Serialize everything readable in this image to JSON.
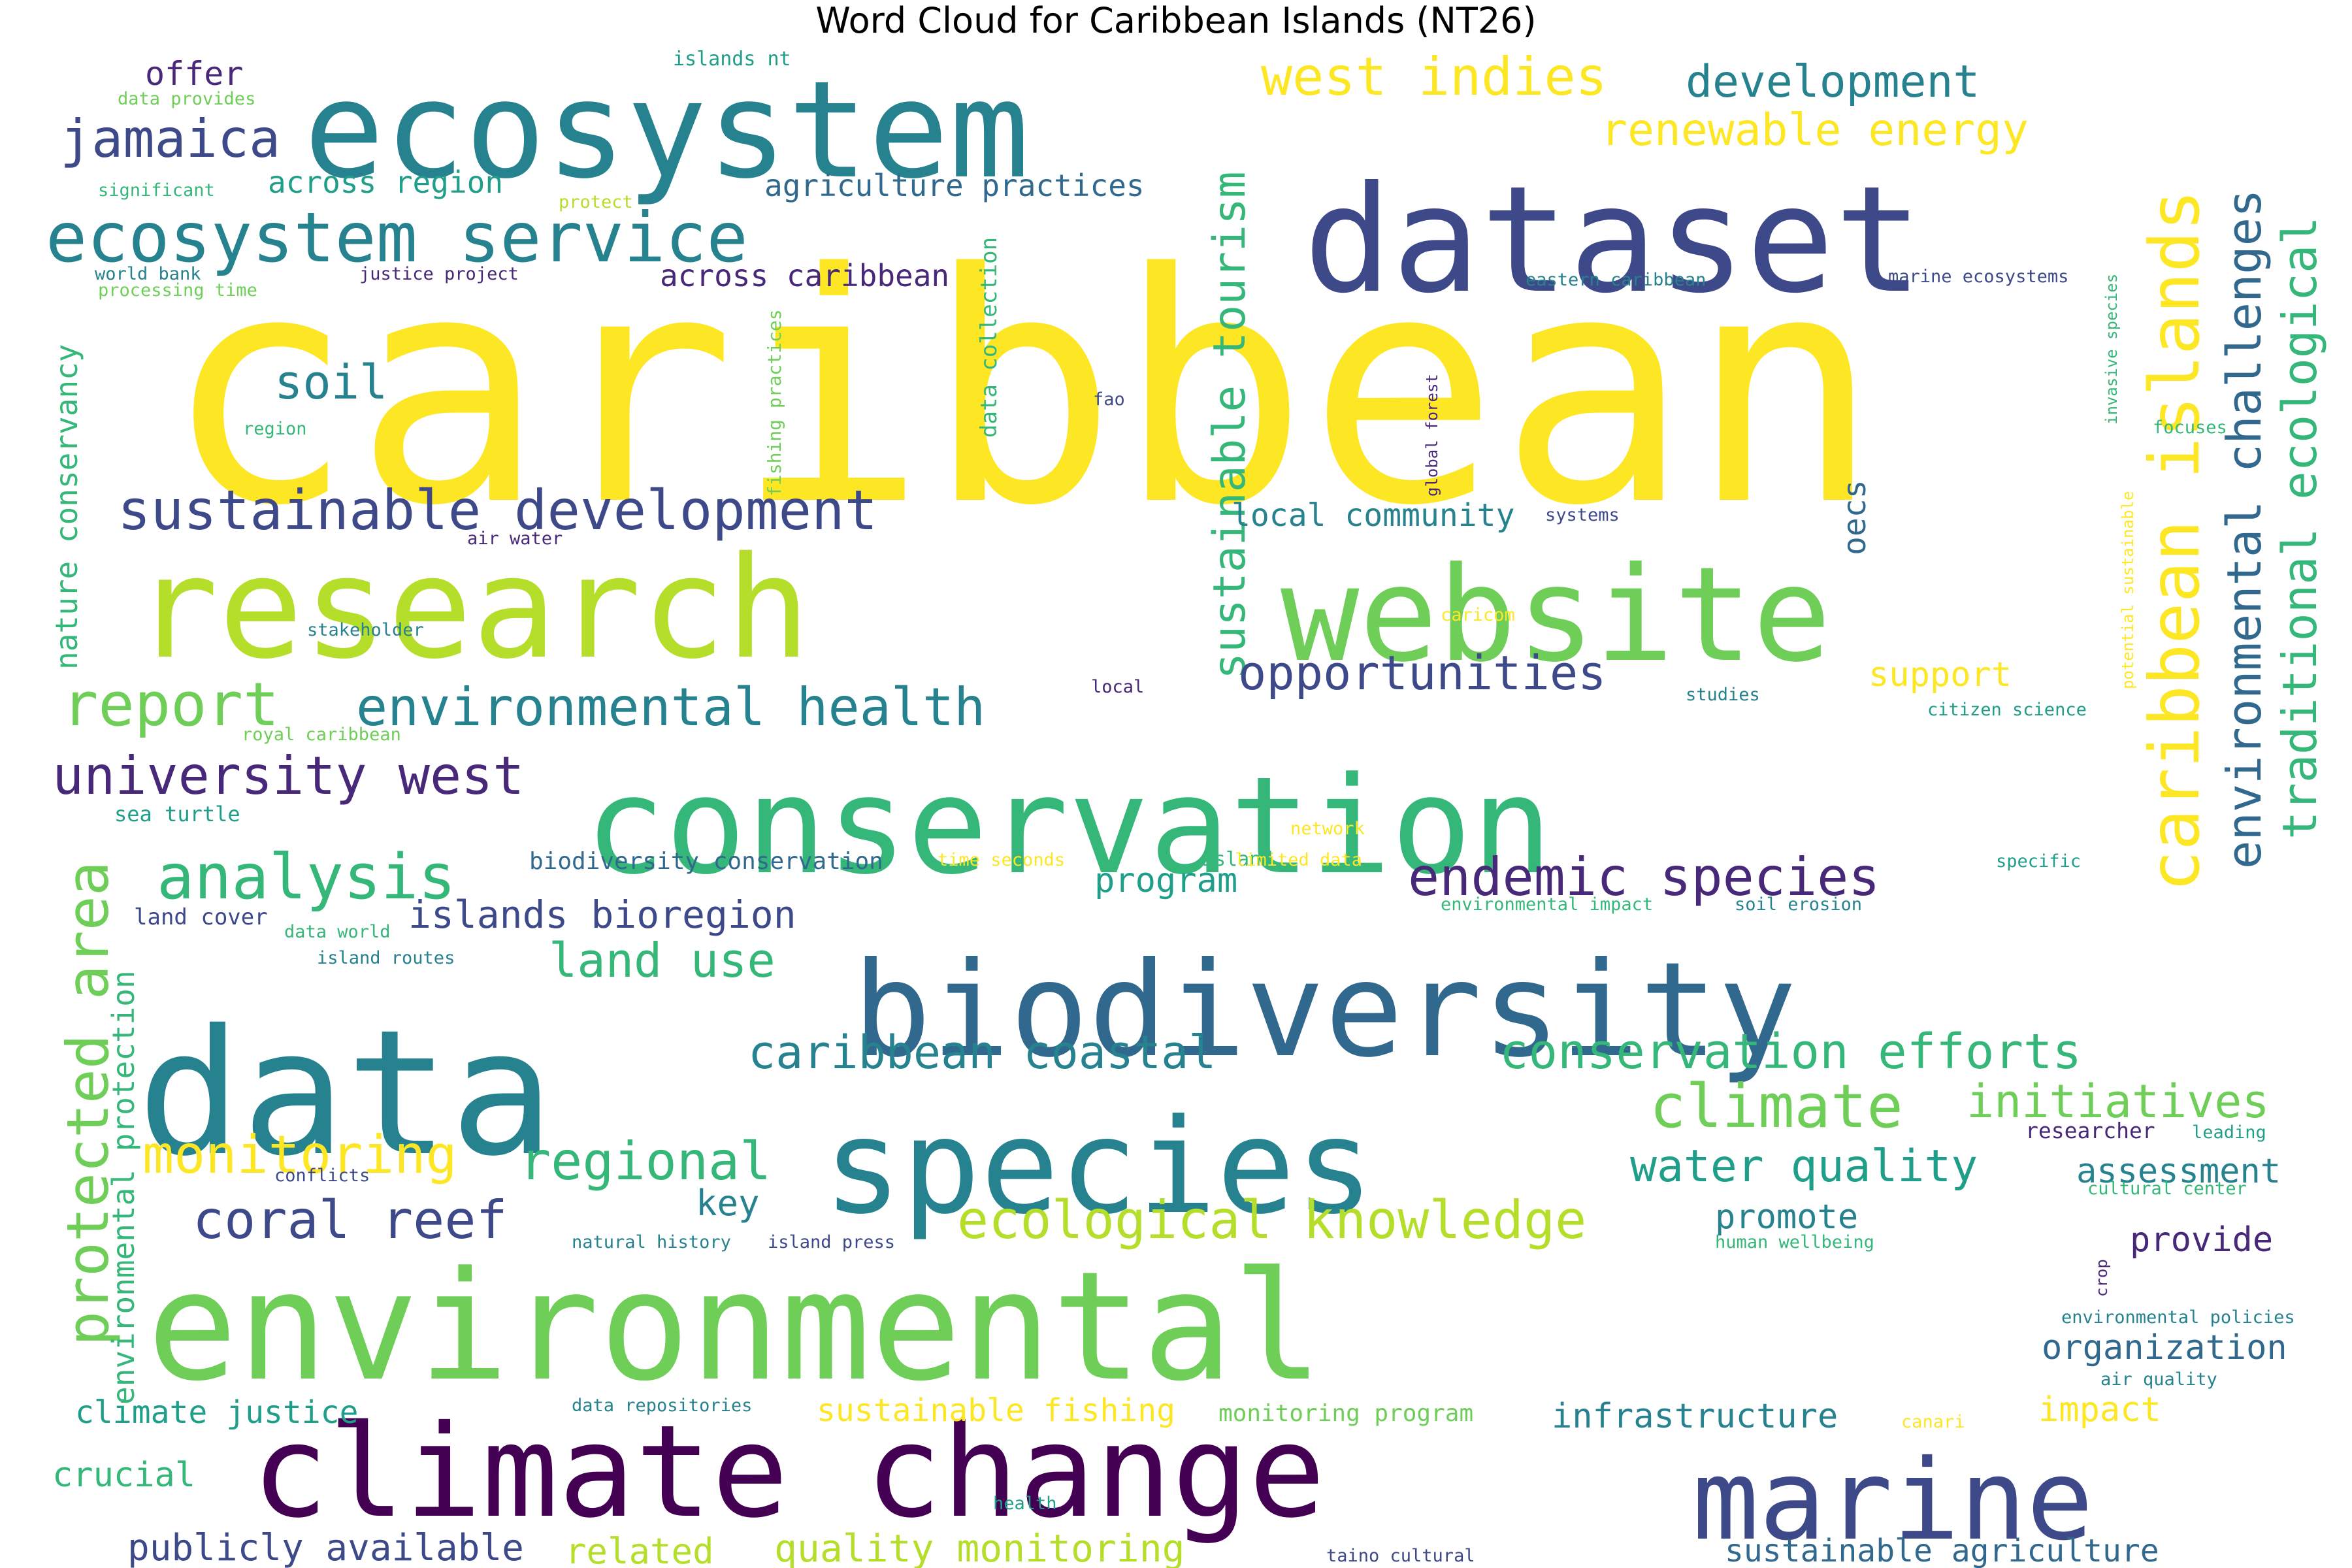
{
  "title": "Word Cloud for Caribbean Islands (NT26)",
  "colors": {
    "a": "#fde725",
    "b": "#b5de2b",
    "c": "#6ece58",
    "d": "#35b779",
    "e": "#1f9e89",
    "f": "#26828e",
    "g": "#31688e",
    "h": "#3e4989",
    "i": "#482878",
    "j": "#440154"
  },
  "words": [
    {
      "text": "caribbean",
      "color": "a",
      "size": 2.3
    },
    {
      "text": "dataset",
      "color": "h",
      "size": 1.15
    },
    {
      "text": "ecosystem",
      "color": "f",
      "size": 0.95
    },
    {
      "text": "research",
      "color": "b",
      "size": 1.05
    },
    {
      "text": "website",
      "color": "c",
      "size": 1.0
    },
    {
      "text": "conservation",
      "color": "d",
      "size": 1.0
    },
    {
      "text": "biodiversity",
      "color": "g",
      "size": 1.0
    },
    {
      "text": "data",
      "color": "f",
      "size": 1.05
    },
    {
      "text": "species",
      "color": "f",
      "size": 0.95
    },
    {
      "text": "environmental",
      "color": "c",
      "size": 1.05
    },
    {
      "text": "climate change",
      "color": "j",
      "size": 1.0
    },
    {
      "text": "marine",
      "color": "h",
      "size": 0.95
    },
    {
      "text": "ecosystem service",
      "color": "f",
      "size": 0.5
    },
    {
      "text": "jamaica",
      "color": "h",
      "size": 0.4
    },
    {
      "text": "west indies",
      "color": "a",
      "size": 0.35
    },
    {
      "text": "development",
      "color": "f",
      "size": 0.35
    },
    {
      "text": "renewable energy",
      "color": "a",
      "size": 0.3
    },
    {
      "text": "caribbean islands",
      "color": "a",
      "size": 0.5
    },
    {
      "text": "environmental challenges",
      "color": "g",
      "size": 0.4
    },
    {
      "text": "traditional ecological",
      "color": "d",
      "size": 0.4
    },
    {
      "text": "sustainable tourism",
      "color": "d",
      "size": 0.4
    },
    {
      "text": "sustainable development",
      "color": "h",
      "size": 0.4
    },
    {
      "text": "soil",
      "color": "f",
      "size": 0.35
    },
    {
      "text": "report",
      "color": "c",
      "size": 0.45
    },
    {
      "text": "environmental health",
      "color": "f",
      "size": 0.4
    },
    {
      "text": "university west",
      "color": "i",
      "size": 0.4
    },
    {
      "text": "analysis",
      "color": "d",
      "size": 0.45
    },
    {
      "text": "endemic species",
      "color": "i",
      "size": 0.4
    },
    {
      "text": "opportunities",
      "color": "h",
      "size": 0.35
    },
    {
      "text": "protected area",
      "color": "c",
      "size": 0.45
    },
    {
      "text": "islands bioregion",
      "color": "h",
      "size": 0.3
    },
    {
      "text": "land use",
      "color": "d",
      "size": 0.35
    },
    {
      "text": "caribbean coastal",
      "color": "f",
      "size": 0.4
    },
    {
      "text": "conservation efforts",
      "color": "d",
      "size": 0.4
    },
    {
      "text": "climate",
      "color": "c",
      "size": 0.45
    },
    {
      "text": "initiatives",
      "color": "c",
      "size": 0.35
    },
    {
      "text": "monitoring",
      "color": "a",
      "size": 0.35
    },
    {
      "text": "regional",
      "color": "d",
      "size": 0.4
    },
    {
      "text": "water quality",
      "color": "e",
      "size": 0.35
    },
    {
      "text": "coral reef",
      "color": "h",
      "size": 0.4
    },
    {
      "text": "ecological knowledge",
      "color": "b",
      "size": 0.4
    },
    {
      "text": "key",
      "color": "f",
      "size": 0.25
    },
    {
      "text": "promote",
      "color": "f",
      "size": 0.25
    },
    {
      "text": "assessment",
      "color": "f",
      "size": 0.25
    },
    {
      "text": "provide",
      "color": "i",
      "size": 0.25
    },
    {
      "text": "organization",
      "color": "g",
      "size": 0.25
    },
    {
      "text": "infrastructure",
      "color": "f",
      "size": 0.25
    },
    {
      "text": "impact",
      "color": "a",
      "size": 0.25
    },
    {
      "text": "climate justice",
      "color": "e",
      "size": 0.22
    },
    {
      "text": "crucial",
      "color": "d",
      "size": 0.25
    },
    {
      "text": "publicly available",
      "color": "h",
      "size": 0.28
    },
    {
      "text": "related",
      "color": "b",
      "size": 0.25
    },
    {
      "text": "quality monitoring",
      "color": "b",
      "size": 0.28
    },
    {
      "text": "sustainable fishing",
      "color": "a",
      "size": 0.22
    },
    {
      "text": "monitoring program",
      "color": "c",
      "size": 0.17
    },
    {
      "text": "sustainable agriculture",
      "color": "g",
      "size": 0.22
    },
    {
      "text": "support",
      "color": "a",
      "size": 0.25
    },
    {
      "text": "local community",
      "color": "f",
      "size": 0.22
    },
    {
      "text": "oecs",
      "color": "g",
      "size": 0.2
    },
    {
      "text": "program",
      "color": "e",
      "size": 0.22
    },
    {
      "text": "offer",
      "color": "i",
      "size": 0.22
    },
    {
      "text": "across region",
      "color": "e",
      "size": 0.22
    },
    {
      "text": "agriculture practices",
      "color": "g",
      "size": 0.22
    },
    {
      "text": "across caribbean",
      "color": "i",
      "size": 0.22
    },
    {
      "text": "nature conservancy",
      "color": "d",
      "size": 0.22
    },
    {
      "text": "environmental protection",
      "color": "d",
      "size": 0.22
    },
    {
      "text": "data collection",
      "color": "d",
      "size": 0.17
    },
    {
      "text": "fishing practices",
      "color": "c",
      "size": 0.12
    },
    {
      "text": "biodiversity conservation",
      "color": "g",
      "size": 0.17
    },
    {
      "text": "land cover",
      "color": "h",
      "size": 0.17
    },
    {
      "text": "sea turtle",
      "color": "e",
      "size": 0.15
    },
    {
      "text": "islands nt",
      "color": "e",
      "size": 0.13
    },
    {
      "text": "data provides",
      "color": "c",
      "size": 0.12
    },
    {
      "text": "significant",
      "color": "d",
      "size": 0.12
    },
    {
      "text": "protect",
      "color": "b",
      "size": 0.12
    },
    {
      "text": "world bank",
      "color": "f",
      "size": 0.12
    },
    {
      "text": "processing time",
      "color": "c",
      "size": 0.12
    },
    {
      "text": "justice project",
      "color": "i",
      "size": 0.12
    },
    {
      "text": "eastern caribbean",
      "color": "f",
      "size": 0.12
    },
    {
      "text": "marine ecosystems",
      "color": "h",
      "size": 0.12
    },
    {
      "text": "fao",
      "color": "h",
      "size": 0.12
    },
    {
      "text": "region",
      "color": "d",
      "size": 0.12
    },
    {
      "text": "global forest",
      "color": "i",
      "size": 0.11
    },
    {
      "text": "invasive species",
      "color": "d",
      "size": 0.11
    },
    {
      "text": "focuses",
      "color": "d",
      "size": 0.12
    },
    {
      "text": "air water",
      "color": "i",
      "size": 0.12
    },
    {
      "text": "systems",
      "color": "h",
      "size": 0.12
    },
    {
      "text": "stakeholder",
      "color": "f",
      "size": 0.12
    },
    {
      "text": "caricom",
      "color": "a",
      "size": 0.12
    },
    {
      "text": "potential sustainable",
      "color": "a",
      "size": 0.11
    },
    {
      "text": "local",
      "color": "i",
      "size": 0.12
    },
    {
      "text": "studies",
      "color": "f",
      "size": 0.12
    },
    {
      "text": "citizen science",
      "color": "e",
      "size": 0.12
    },
    {
      "text": "royal caribbean",
      "color": "c",
      "size": 0.12
    },
    {
      "text": "network",
      "color": "a",
      "size": 0.12
    },
    {
      "text": "time seconds",
      "color": "a",
      "size": 0.12
    },
    {
      "text": "island",
      "color": "d",
      "size": 0.13
    },
    {
      "text": "limited data",
      "color": "a",
      "size": 0.12
    },
    {
      "text": "specific",
      "color": "e",
      "size": 0.12
    },
    {
      "text": "environmental impact",
      "color": "d",
      "size": 0.12
    },
    {
      "text": "soil erosion",
      "color": "f",
      "size": 0.12
    },
    {
      "text": "data world",
      "color": "d",
      "size": 0.12
    },
    {
      "text": "island routes",
      "color": "f",
      "size": 0.12
    },
    {
      "text": "researcher",
      "color": "i",
      "size": 0.14
    },
    {
      "text": "leading",
      "color": "e",
      "size": 0.12
    },
    {
      "text": "conflicts",
      "color": "h",
      "size": 0.12
    },
    {
      "text": "cultural center",
      "color": "d",
      "size": 0.12
    },
    {
      "text": "natural history",
      "color": "f",
      "size": 0.12
    },
    {
      "text": "island press",
      "color": "h",
      "size": 0.12
    },
    {
      "text": "human wellbeing",
      "color": "d",
      "size": 0.12
    },
    {
      "text": "crop",
      "color": "i",
      "size": 0.12
    },
    {
      "text": "environmental policies",
      "color": "f",
      "size": 0.12
    },
    {
      "text": "air quality",
      "color": "f",
      "size": 0.12
    },
    {
      "text": "data repositories",
      "color": "f",
      "size": 0.12
    },
    {
      "text": "canari",
      "color": "a",
      "size": 0.12
    },
    {
      "text": "health",
      "color": "e",
      "size": 0.12
    },
    {
      "text": "taino cultural",
      "color": "h",
      "size": 0.12
    }
  ]
}
